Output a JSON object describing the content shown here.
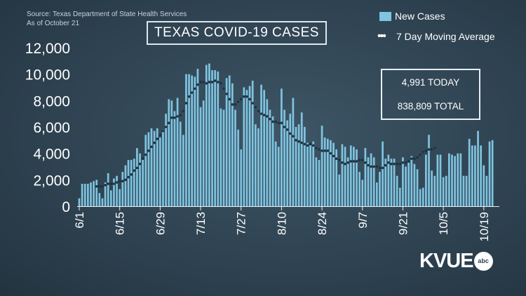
{
  "source": {
    "line1": "Source: Texas Department of State Health Services",
    "line2": "As of October 21"
  },
  "header": {
    "title": "TEXAS COVID-19 CASES"
  },
  "stats": {
    "today": "4,991 TODAY",
    "total": "838,809 TOTAL"
  },
  "logo": {
    "text": "KVUE",
    "badge": "abc"
  },
  "colors": {
    "bar": "#7fc4e0",
    "dots": "#1e3442",
    "background": "#2f4352",
    "text": "#ffffff"
  },
  "chart_data": {
    "type": "bar",
    "title": "TEXAS COVID-19 CASES",
    "xlabel": "",
    "ylabel": "",
    "ylim": [
      0,
      12000
    ],
    "yticks": [
      "0",
      "2,000",
      "4,000",
      "6,000",
      "8,000",
      "10,000",
      "12,000"
    ],
    "xticks": [
      "6/1",
      "6/15",
      "6/29",
      "7/13",
      "7/27",
      "8/10",
      "8/24",
      "9/7",
      "9/21",
      "10/5",
      "10/19"
    ],
    "legend": {
      "placement": "top-right",
      "entries": [
        "New Cases",
        "7 Day Moving Average"
      ]
    },
    "grid": false,
    "series": [
      {
        "name": "New Cases",
        "type": "bar",
        "start_date": "6/1",
        "values": [
          600,
          1700,
          1700,
          1700,
          1800,
          1900,
          2000,
          1000,
          600,
          1800,
          2500,
          1200,
          2100,
          2300,
          1300,
          2600,
          3100,
          3500,
          3500,
          3600,
          4400,
          4000,
          3600,
          5400,
          5600,
          5900,
          5700,
          5900,
          5200,
          5800,
          7000,
          8100,
          8000,
          7200,
          8200,
          6400,
          5400,
          10000,
          10000,
          9900,
          9800,
          10400,
          7500,
          8000,
          10700,
          10800,
          10300,
          10300,
          10200,
          7400,
          7300,
          9700,
          9900,
          9300,
          7300,
          5800,
          4300,
          9000,
          8800,
          9100,
          9500,
          6200,
          5900,
          9200,
          8800,
          8100,
          7300,
          6800,
          4900,
          4500,
          8900,
          7300,
          6500,
          7000,
          8200,
          6000,
          6200,
          7100,
          6000,
          4800,
          4700,
          4900,
          3700,
          3500,
          6100,
          5200,
          5100,
          5000,
          4800,
          4300,
          2400,
          4700,
          4500,
          3700,
          4600,
          4500,
          4300,
          2600,
          2000,
          4400,
          3700,
          4000,
          3700,
          1800,
          2600,
          4900,
          3600,
          3900,
          3600,
          3600,
          2300,
          1400,
          3700,
          3000,
          3300,
          3800,
          3200,
          2800,
          1300,
          1400,
          3900,
          5400,
          2700,
          2300,
          3900,
          3900,
          2200,
          2300,
          4000,
          3900,
          3800,
          4000,
          4000,
          2300,
          2300,
          5100,
          4600,
          4600,
          5700,
          4600,
          3100,
          2300,
          4900,
          5000
        ]
      },
      {
        "name": "7 Day Moving Average",
        "type": "line",
        "start_date": "6/7",
        "values": [
          1500,
          1500,
          1500,
          1600,
          1700,
          1700,
          1700,
          1800,
          1900,
          1900,
          2000,
          2200,
          2400,
          2700,
          2900,
          3200,
          3600,
          3900,
          4200,
          4500,
          4800,
          5100,
          5400,
          5700,
          6000,
          6300,
          6700,
          6700,
          6800,
          6900,
          7200,
          7800,
          8300,
          8600,
          8900,
          9200,
          9400,
          9400,
          9300,
          9400,
          9400,
          9500,
          9400,
          9300,
          8900,
          8500,
          8100,
          7700,
          7700,
          7900,
          8100,
          8300,
          8300,
          8100,
          7800,
          7500,
          7200,
          7000,
          6900,
          6800,
          6600,
          6400,
          6400,
          6300,
          6300,
          6000,
          5800,
          5500,
          5300,
          5000,
          4900,
          4800,
          4700,
          4600,
          4700,
          4600,
          4400,
          4300,
          4200,
          4200,
          4200,
          4000,
          3800,
          3600,
          3500,
          3300,
          3200,
          3300,
          3400,
          3400,
          3400,
          3500,
          3500,
          3300,
          3100,
          3000,
          3000,
          3000,
          2900,
          2900,
          3100,
          3300,
          3200,
          3200,
          3200,
          3200,
          3300,
          3300,
          3400,
          3600,
          3600,
          3700,
          3900,
          4100,
          4200,
          4300,
          4300,
          4400
        ]
      }
    ]
  }
}
